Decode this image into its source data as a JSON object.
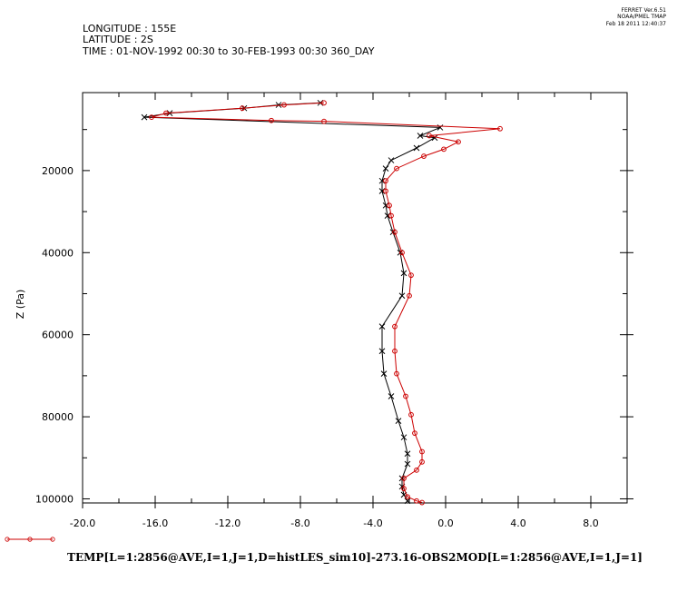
{
  "header": {
    "longitude": "LONGITUDE : 155E",
    "latitude": "LATITUDE : 2S",
    "time": "TIME : 01-NOV-1992 00:30 to 30-FEB-1993 00:30 360_DAY"
  },
  "stamp": {
    "line1": "FERRET  Ver.6.51",
    "line2": "NOAA/PMEL TMAP",
    "line3": "Feb 18 2011 12:40:37"
  },
  "chart_data": {
    "type": "line",
    "title": "TEMP[L=1:2856@AVE,I=1,J=1,D=histLES_sim10]-273.16-OBS2MOD[L=1:2856@AVE,I=1,J=1]",
    "xlabel": "",
    "ylabel": "Z (Pa)",
    "xlim": [
      -20,
      10
    ],
    "ylim": [
      1000,
      101000
    ],
    "y_inverted": true,
    "x_ticks": [
      "-20.0",
      "-16.0",
      "-12.0",
      "-8.0",
      "-4.0",
      "0.0",
      "4.0",
      "8.0"
    ],
    "x_tick_values": [
      -20,
      -16,
      -12,
      -8,
      -4,
      0,
      4,
      8
    ],
    "y_ticks": [
      "20000",
      "40000",
      "60000",
      "80000",
      "100000"
    ],
    "y_tick_values": [
      20000,
      40000,
      60000,
      80000,
      100000
    ],
    "legend_placement": "bottom-left",
    "series": [
      {
        "color": "#000000",
        "marker": "x",
        "points": [
          [
            -6.9,
            3500
          ],
          [
            -9.2,
            4000
          ],
          [
            -11.1,
            4800
          ],
          [
            -15.2,
            6000
          ],
          [
            -16.6,
            7000
          ],
          [
            -0.3,
            9500
          ],
          [
            -1.4,
            11500
          ],
          [
            -0.6,
            12000
          ],
          [
            -1.6,
            14500
          ],
          [
            -3.0,
            17500
          ],
          [
            -3.3,
            19500
          ],
          [
            -3.5,
            22500
          ],
          [
            -3.5,
            25000
          ],
          [
            -3.3,
            28500
          ],
          [
            -3.2,
            31000
          ],
          [
            -2.9,
            35000
          ],
          [
            -2.5,
            40000
          ],
          [
            -2.3,
            45000
          ],
          [
            -2.4,
            50500
          ],
          [
            -3.5,
            58000
          ],
          [
            -3.5,
            64000
          ],
          [
            -3.4,
            69500
          ],
          [
            -3.0,
            75000
          ],
          [
            -2.6,
            81000
          ],
          [
            -2.3,
            85000
          ],
          [
            -2.1,
            89000
          ],
          [
            -2.1,
            91500
          ],
          [
            -2.4,
            95000
          ],
          [
            -2.4,
            97000
          ],
          [
            -2.3,
            99000
          ],
          [
            -2.1,
            100500
          ]
        ]
      },
      {
        "color": "#cc0000",
        "marker": "circle",
        "points": [
          [
            -6.7,
            3500
          ],
          [
            -8.9,
            4000
          ],
          [
            -11.2,
            4800
          ],
          [
            -15.4,
            6000
          ],
          [
            -16.2,
            7000
          ],
          [
            -9.6,
            7800
          ],
          [
            -6.7,
            8000
          ],
          [
            3.0,
            9800
          ],
          [
            -0.9,
            11500
          ],
          [
            0.7,
            13000
          ],
          [
            -0.1,
            14800
          ],
          [
            -1.2,
            16500
          ],
          [
            -2.7,
            19500
          ],
          [
            -3.3,
            22500
          ],
          [
            -3.3,
            25000
          ],
          [
            -3.1,
            28500
          ],
          [
            -3.0,
            31000
          ],
          [
            -2.8,
            35000
          ],
          [
            -2.4,
            40000
          ],
          [
            -1.9,
            45500
          ],
          [
            -2.0,
            50500
          ],
          [
            -2.8,
            58000
          ],
          [
            -2.8,
            64000
          ],
          [
            -2.7,
            69500
          ],
          [
            -2.2,
            75000
          ],
          [
            -1.9,
            79500
          ],
          [
            -1.7,
            84000
          ],
          [
            -1.3,
            88500
          ],
          [
            -1.3,
            91000
          ],
          [
            -1.6,
            93000
          ],
          [
            -2.3,
            95000
          ],
          [
            -2.3,
            97500
          ],
          [
            -2.1,
            99500
          ],
          [
            -1.6,
            100500
          ],
          [
            -1.3,
            100900
          ]
        ]
      }
    ]
  }
}
